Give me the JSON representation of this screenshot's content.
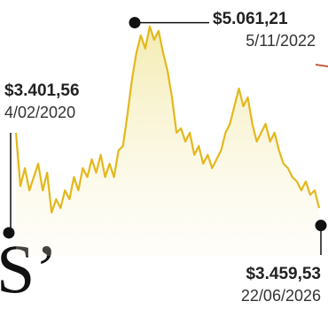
{
  "chart_data": {
    "type": "line",
    "headline_fragment": "S’",
    "color": "#e3b81c",
    "ylim": [
      2800,
      5240
    ],
    "values": [
      4192,
      3772,
      3912,
      3737,
      3842,
      3947,
      3737,
      3877,
      3562,
      3667,
      3597,
      3737,
      3667,
      3842,
      3737,
      3912,
      3842,
      3982,
      3877,
      4017,
      3842,
      3947,
      3842,
      4052,
      4087,
      4331,
      4611,
      4821,
      4961,
      4856,
      5031,
      4926,
      4996,
      4821,
      4681,
      4471,
      4192,
      4227,
      4122,
      4192,
      4017,
      4087,
      3947,
      4017,
      3912,
      3982,
      4052,
      4192,
      4262,
      4401,
      4541,
      4401,
      4471,
      4262,
      4122,
      4192,
      4262,
      4122,
      4192,
      4052,
      3947,
      3912,
      3842,
      3807,
      3737,
      3807,
      3702,
      3737,
      3597
    ],
    "annotations": [
      {
        "value": 3401.56,
        "label": "$3.401,56",
        "date": "4/02/2020"
      },
      {
        "value": 5061.21,
        "label": "$5.061,21",
        "date": "5/11/2022"
      },
      {
        "value": 3459.53,
        "label": "$3.459,53",
        "date": "22/06/2026"
      }
    ]
  }
}
